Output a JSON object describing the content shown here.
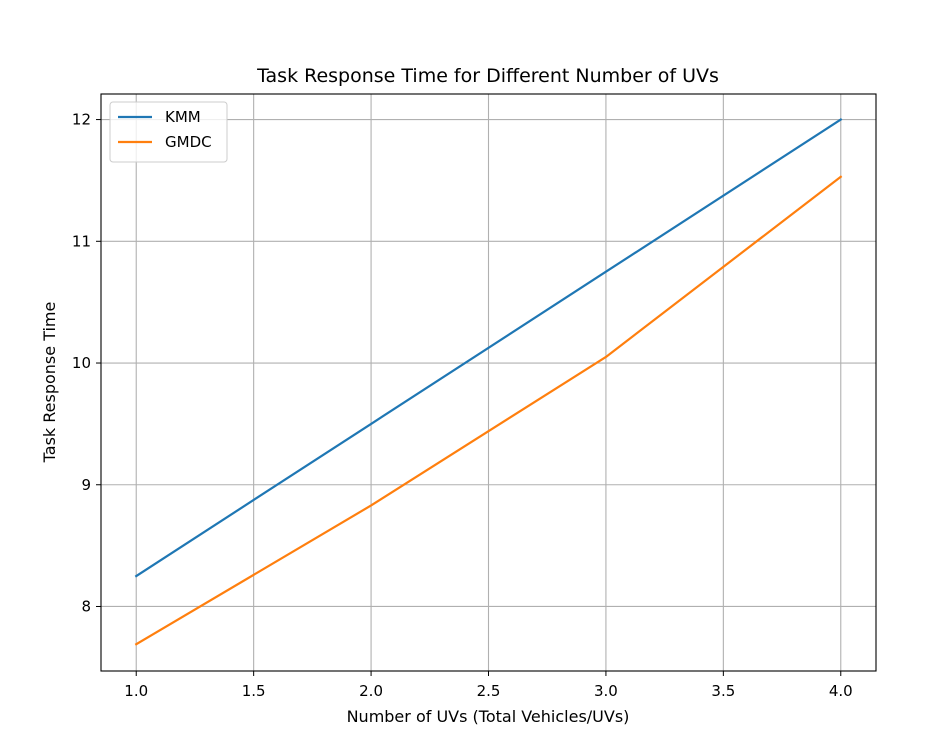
{
  "chart_data": {
    "type": "line",
    "title": "Task Response Time for Different Number of UVs",
    "xlabel": "Number of UVs  (Total Vehicles/UVs)",
    "ylabel": "Task Response Time",
    "xlim": [
      0.85,
      4.15
    ],
    "ylim": [
      7.47,
      12.21
    ],
    "x_ticks": [
      1.0,
      1.5,
      2.0,
      2.5,
      3.0,
      3.5,
      4.0
    ],
    "x_tick_labels": [
      "1.0",
      "1.5",
      "2.0",
      "2.5",
      "3.0",
      "3.5",
      "4.0"
    ],
    "y_ticks": [
      8,
      9,
      10,
      11,
      12
    ],
    "y_tick_labels": [
      "8",
      "9",
      "10",
      "11",
      "12"
    ],
    "grid": true,
    "legend_position": "top-left",
    "series": [
      {
        "name": "KMM",
        "color": "#1f77b4",
        "x": [
          1,
          2,
          3,
          4
        ],
        "y": [
          8.25,
          9.5,
          10.75,
          12.0
        ]
      },
      {
        "name": "GMDC",
        "color": "#ff7f0e",
        "x": [
          1,
          2,
          3,
          4
        ],
        "y": [
          7.69,
          8.83,
          10.05,
          11.53
        ]
      }
    ]
  }
}
